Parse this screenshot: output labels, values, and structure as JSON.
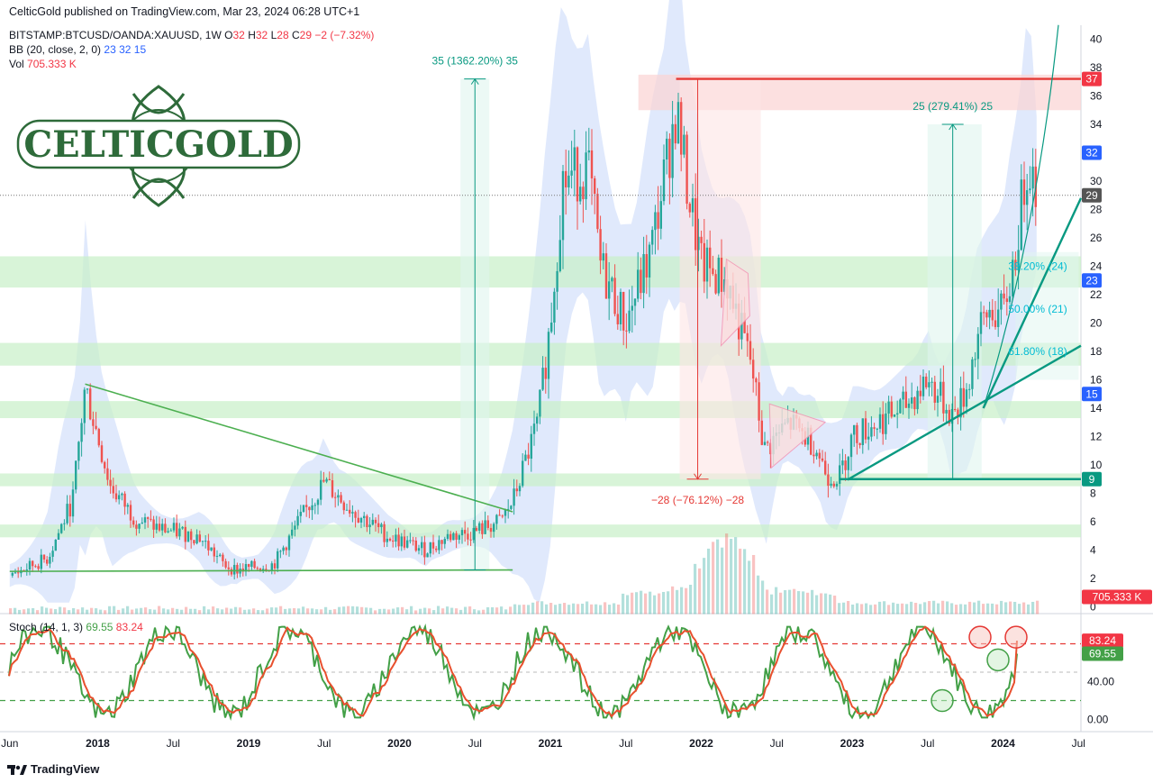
{
  "header": {
    "published": "CelticGold published on TradingView.com, Mar 23, 2024 06:28 UTC+1",
    "symbol": "BITSTAMP:BTCUSD/OANDA:XAUUSD, 1W",
    "ohlc": {
      "o_label": "O",
      "o": "32",
      "h_label": "H",
      "h": "32",
      "l_label": "L",
      "l": "28",
      "c_label": "C",
      "c": "29",
      "change": "−2 (−7.32%)"
    },
    "bb_label": "BB (20, close, 2, 0)",
    "bb_values": [
      "23",
      "32",
      "15"
    ],
    "vol_label": "Vol",
    "vol_value": "705.333 K"
  },
  "logo": {
    "text": "CELTICGOLD"
  },
  "stoch": {
    "label": "Stoch (14, 1, 3)",
    "k": "69.55",
    "d": "83.24"
  },
  "footer": {
    "brand": "TradingView"
  },
  "colors": {
    "up": "#26a69a",
    "down": "#ef5350",
    "bb_fill": "#d6e2fb",
    "support": "#4caf50",
    "resistance": "#e53935",
    "teal": "#089981",
    "stoch_k": "#43a047",
    "stoch_d": "#e8502e"
  },
  "chart_data": [
    {
      "type": "candlestick",
      "title": "BITSTAMP:BTCUSD/OANDA:XAUUSD, 1W",
      "y_axis": {
        "min": 0,
        "max": 40,
        "ticks": [
          0,
          2,
          4,
          6,
          8,
          10,
          12,
          14,
          16,
          18,
          20,
          22,
          24,
          26,
          28,
          30,
          32,
          34,
          36,
          38,
          40
        ]
      },
      "x_axis": {
        "start": "2017-06",
        "end": "2024-09",
        "labels": [
          "Jun",
          "2018",
          "Jul",
          "2019",
          "Jul",
          "2020",
          "Jul",
          "2021",
          "Jul",
          "2022",
          "Jul",
          "2023",
          "Jul",
          "2024",
          "Jul"
        ]
      },
      "price_tags": [
        {
          "label": "37",
          "value": 37.2,
          "color": "#f23645"
        },
        {
          "label": "32",
          "value": 32,
          "color": "#2962ff"
        },
        {
          "label": "29",
          "value": 29,
          "color": "#555555"
        },
        {
          "label": "23",
          "value": 23,
          "color": "#2962ff"
        },
        {
          "label": "15",
          "value": 15,
          "color": "#2962ff"
        },
        {
          "label": "9",
          "value": 9,
          "color": "#089981"
        },
        {
          "label": "705.333 K",
          "value": 0.7,
          "color": "#f23645"
        }
      ],
      "series": [
        {
          "name": "price path (close)",
          "points": [
            [
              "2017-06",
              2.2
            ],
            [
              "2017-09",
              3.4
            ],
            [
              "2017-11",
              7.5
            ],
            [
              "2017-12",
              15.5
            ],
            [
              "2018-02",
              8.5
            ],
            [
              "2018-04",
              6.2
            ],
            [
              "2018-06",
              5.5
            ],
            [
              "2018-09",
              5.0
            ],
            [
              "2018-11",
              3.0
            ],
            [
              "2018-12",
              2.6
            ],
            [
              "2019-03",
              3.0
            ],
            [
              "2019-05",
              6.0
            ],
            [
              "2019-07",
              8.8
            ],
            [
              "2019-09",
              7.0
            ],
            [
              "2019-12",
              5.0
            ],
            [
              "2020-03",
              4.0
            ],
            [
              "2020-05",
              5.0
            ],
            [
              "2020-07",
              5.3
            ],
            [
              "2020-09",
              6.0
            ],
            [
              "2020-10",
              7.4
            ],
            [
              "2020-12",
              13.0
            ],
            [
              "2021-01",
              20
            ],
            [
              "2021-02",
              30
            ],
            [
              "2021-04",
              31
            ],
            [
              "2021-05",
              24
            ],
            [
              "2021-07",
              20
            ],
            [
              "2021-09",
              25
            ],
            [
              "2021-11",
              35
            ],
            [
              "2021-12",
              29
            ],
            [
              "2022-01",
              24
            ],
            [
              "2022-03",
              23
            ],
            [
              "2022-04",
              20
            ],
            [
              "2022-05",
              17
            ],
            [
              "2022-06",
              11
            ],
            [
              "2022-08",
              13
            ],
            [
              "2022-10",
              11.5
            ],
            [
              "2022-11",
              9.3
            ],
            [
              "2022-12",
              9.2
            ],
            [
              "2023-01",
              12
            ],
            [
              "2023-03",
              13
            ],
            [
              "2023-05",
              14
            ],
            [
              "2023-07",
              16
            ],
            [
              "2023-09",
              13.5
            ],
            [
              "2023-10",
              15
            ],
            [
              "2023-11",
              19
            ],
            [
              "2023-12",
              21
            ],
            [
              "2024-01",
              20.5
            ],
            [
              "2024-02",
              25
            ],
            [
              "2024-03",
              32
            ],
            [
              "2024-03-23",
              29
            ]
          ]
        }
      ],
      "volume": {
        "label": "Vol",
        "max_spike_date": "2022-03"
      },
      "horizontal_zones": [
        {
          "type": "support",
          "from": 4.9,
          "to": 5.8
        },
        {
          "type": "support",
          "from": 8.5,
          "to": 9.4
        },
        {
          "type": "support",
          "from": 13.3,
          "to": 14.5
        },
        {
          "type": "support",
          "from": 17.0,
          "to": 18.6
        },
        {
          "type": "support",
          "from": 22.5,
          "to": 24.7
        },
        {
          "type": "resistance",
          "from": 35,
          "to": 37.5
        }
      ],
      "trendlines": [
        {
          "color": "green",
          "from": [
            "2017-06",
            2.5
          ],
          "to": [
            "2020-10",
            2.6
          ]
        },
        {
          "color": "green",
          "from": [
            "2017-12",
            15.7
          ],
          "to": [
            "2020-10",
            6.7
          ]
        },
        {
          "color": "teal",
          "from": [
            "2022-12",
            9
          ],
          "to": [
            "2024-09",
            9
          ]
        },
        {
          "color": "red",
          "from": [
            "2021-11",
            37.2
          ],
          "to": [
            "2024-09",
            37.2
          ]
        }
      ],
      "measurements": [
        {
          "label": "35 (1362.20%) 35",
          "from": [
            "2020-07",
            2.6
          ],
          "to": [
            "2020-07",
            37.2
          ]
        },
        {
          "label": "−28 (−76.12%) −28",
          "from": [
            "2022-01",
            37.2
          ],
          "to": [
            "2022-01",
            9
          ]
        },
        {
          "label": "25 (279.41%) 25",
          "from": [
            "2023-09",
            9
          ],
          "to": [
            "2023-09",
            34
          ]
        }
      ],
      "fibonacci": [
        {
          "label": "38.20% (24)",
          "value": 24
        },
        {
          "label": "50.00% (21)",
          "value": 21
        },
        {
          "label": "61.80% (18)",
          "value": 18
        }
      ]
    },
    {
      "type": "line",
      "title": "Stoch (14, 1, 3)",
      "y_axis": {
        "min": 0,
        "max": 100,
        "ticks": [
          "0.00",
          "40.00"
        ]
      },
      "levels": [
        80,
        20
      ],
      "series": [
        {
          "name": "%K",
          "last": 69.55
        },
        {
          "name": "%D",
          "last": 83.24
        }
      ],
      "tags": [
        {
          "label": "83.24",
          "color": "#f23645"
        },
        {
          "label": "69.55",
          "color": "#43a047"
        }
      ]
    }
  ]
}
